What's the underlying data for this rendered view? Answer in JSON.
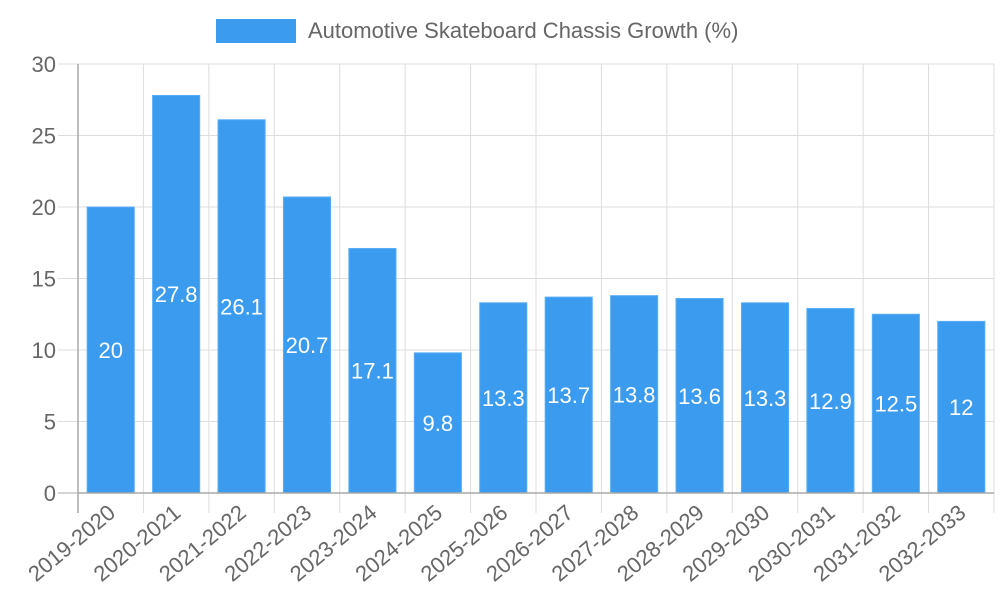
{
  "colors": {
    "bar": "#3a9bef",
    "bar_border": "#5aaef5",
    "grid": "#dddddd",
    "axis": "#a8a8a8",
    "tick_text": "#666666",
    "data_label": "#ffffff"
  },
  "legend": {
    "label": "Automotive Skateboard Chassis Growth (%)"
  },
  "chart_data": {
    "type": "bar",
    "title": "",
    "legend": [
      "Automotive Skateboard Chassis Growth (%)"
    ],
    "legend_position": "top",
    "xlabel": "",
    "ylabel": "",
    "ylim": [
      0,
      30
    ],
    "yticks": [
      0,
      5,
      10,
      15,
      20,
      25,
      30
    ],
    "grid": true,
    "categories": [
      "2019-2020",
      "2020-2021",
      "2021-2022",
      "2022-2023",
      "2023-2024",
      "2024-2025",
      "2025-2026",
      "2026-2027",
      "2027-2028",
      "2028-2029",
      "2029-2030",
      "2030-2031",
      "2031-2032",
      "2032-2033"
    ],
    "series": [
      {
        "name": "Automotive Skateboard Chassis Growth (%)",
        "values": [
          20,
          27.8,
          26.1,
          20.7,
          17.1,
          9.8,
          13.3,
          13.7,
          13.8,
          13.6,
          13.3,
          12.9,
          12.5,
          12
        ]
      }
    ],
    "data_labels": [
      "20",
      "27.8",
      "26.1",
      "20.7",
      "17.1",
      "9.8",
      "13.3",
      "13.7",
      "13.8",
      "13.6",
      "13.3",
      "12.9",
      "12.5",
      "12"
    ]
  }
}
